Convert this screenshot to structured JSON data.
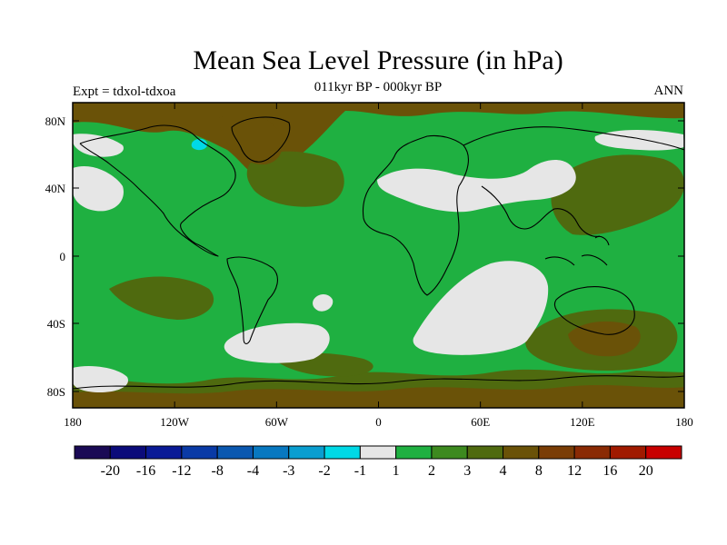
{
  "title": "Mean Sea Level Pressure (in hPa)",
  "subtitle": "011kyr BP - 000kyr BP",
  "left_label": "Expt = tdxol-tdxoa",
  "right_label": "ANN",
  "lat_labels": [
    "80N",
    "40N",
    "0",
    "40S",
    "80S"
  ],
  "lon_labels": [
    "180",
    "120W",
    "60W",
    "0",
    "60E",
    "120E",
    "180"
  ],
  "colorbar": {
    "colors": [
      "#1a0a55",
      "#0b0b7a",
      "#0a1a96",
      "#0a3aa6",
      "#0b58b0",
      "#0878c0",
      "#0a9ed0",
      "#00d9e6",
      "#e6e6e6",
      "#1fb041",
      "#3d8a1f",
      "#4f6a0f",
      "#6a5208",
      "#7a3d06",
      "#8a2a04",
      "#a01a00",
      "#c80000"
    ],
    "labels": [
      "-20",
      "-16",
      "-12",
      "-8",
      "-4",
      "-3",
      "-2",
      "-1",
      "1",
      "2",
      "3",
      "4",
      "8",
      "12",
      "16",
      "20"
    ]
  },
  "fill_colors": {
    "base": "#1fb041",
    "light": "#e6e6e6",
    "positive_mid": "#4f6a0f",
    "positive_high": "#6a5208",
    "negative": "#00d9e6"
  }
}
